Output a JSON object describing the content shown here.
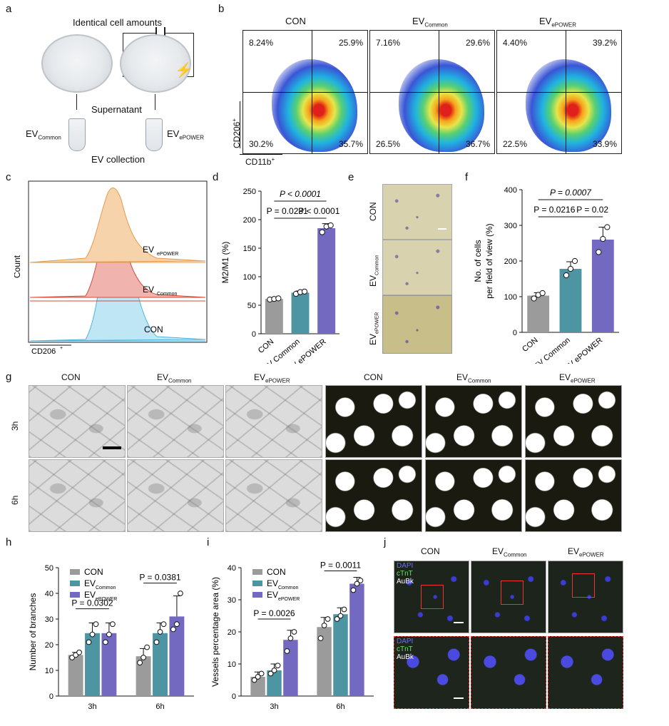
{
  "panels": {
    "a": "a",
    "b": "b",
    "c": "c",
    "d": "d",
    "e": "e",
    "f": "f",
    "g": "g",
    "h": "h",
    "i": "i",
    "j": "j"
  },
  "a": {
    "identical": "Identical cell amounts",
    "supernatant": "Supernatant",
    "ev_common": "EV",
    "ev_common_sub": "Common",
    "ev_epower": "EV",
    "ev_epower_sub": "ePOWER",
    "collection": "EV collection"
  },
  "b": {
    "titles": [
      "CON",
      "EV",
      "EV"
    ],
    "title_subs": [
      "",
      "Common",
      "ePOWER"
    ],
    "quadrants": [
      [
        "8.24%",
        "25.9%",
        "30.2%",
        "35.7%"
      ],
      [
        "7.16%",
        "29.6%",
        "26.5%",
        "36.7%"
      ],
      [
        "4.40%",
        "39.2%",
        "22.5%",
        "33.9%"
      ]
    ],
    "ylabel": "CD206",
    "ylabel_sup": "+",
    "xlabel": "CD11b",
    "xlabel_sup": "+"
  },
  "c": {
    "series": [
      "EV",
      "EV",
      "CON"
    ],
    "series_subs": [
      "ePOWER",
      "Common",
      ""
    ],
    "ylabel": "Count",
    "xlabel": "CD206",
    "xlabel_sup": "+"
  },
  "e": {
    "rows": [
      "CON",
      "EV",
      "EV"
    ],
    "row_subs": [
      "",
      "Common",
      "ePOWER"
    ]
  },
  "g": {
    "cols": [
      "CON",
      "EV",
      "EV",
      "CON",
      "EV",
      "EV"
    ],
    "col_subs": [
      "",
      "Common",
      "ePOWER",
      "",
      "Common",
      "ePOWER"
    ],
    "rows": [
      "3h",
      "6h"
    ]
  },
  "j": {
    "cols": [
      "CON",
      "EV",
      "EV"
    ],
    "col_subs": [
      "",
      "Common",
      "ePOWER"
    ],
    "legend": [
      "DAPI",
      "cTnT",
      "AuBk"
    ]
  },
  "chart_data": [
    {
      "panel": "d",
      "type": "bar",
      "categories": [
        "CON",
        "EV Common",
        "EV ePOWER"
      ],
      "values": [
        61,
        72,
        185
      ],
      "points": [
        [
          60,
          61,
          62
        ],
        [
          70,
          73,
          74
        ],
        [
          178,
          188,
          190
        ]
      ],
      "errors": [
        2,
        3,
        8
      ],
      "ylabel": "M2/M1 (%)",
      "ylim": [
        0,
        250
      ],
      "yticks": [
        "0",
        "50",
        "100",
        "150",
        "200",
        "250"
      ],
      "colors": [
        "#9b9b9b",
        "#4d95a3",
        "#7469c0"
      ],
      "annotations": [
        "P < 0.0001",
        "P = 0.0231",
        "P < 0.0001"
      ]
    },
    {
      "panel": "f",
      "type": "bar",
      "categories": [
        "CON",
        "EV Common",
        "EV ePOWER"
      ],
      "values": [
        103,
        178,
        260
      ],
      "points": [
        [
          95,
          105,
          110
        ],
        [
          160,
          178,
          200
        ],
        [
          225,
          262,
          295
        ]
      ],
      "errors": [
        8,
        20,
        35
      ],
      "ylabel": "No. of cells",
      "ylabel2": "per field of view (%)",
      "ylim": [
        0,
        400
      ],
      "yticks": [
        "0",
        "100",
        "200",
        "300",
        "400"
      ],
      "colors": [
        "#9b9b9b",
        "#4d95a3",
        "#7469c0"
      ],
      "annotations": [
        "P = 0.0007",
        "P = 0.0216",
        "P = 0.02"
      ]
    },
    {
      "panel": "h",
      "type": "bar",
      "categories": [
        "3h",
        "6h"
      ],
      "series": [
        {
          "name": "CON",
          "values": [
            16,
            15.5
          ],
          "points": [
            [
              15,
              16,
              17
            ],
            [
              13,
              15,
              19
            ]
          ],
          "errors": [
            1,
            3
          ]
        },
        {
          "name": "EV Common",
          "values": [
            24.5,
            24.5
          ],
          "points": [
            [
              21,
              24,
              28
            ],
            [
              21,
              25,
              28
            ]
          ],
          "errors": [
            4,
            4
          ]
        },
        {
          "name": "EV ePOWER",
          "values": [
            24.5,
            31
          ],
          "points": [
            [
              21,
              24,
              28
            ],
            [
              26,
              28,
              40
            ]
          ],
          "errors": [
            4,
            8
          ]
        }
      ],
      "ylabel": "Number of branches",
      "ylim": [
        0,
        50
      ],
      "yticks": [
        "0",
        "10",
        "20",
        "30",
        "40",
        "50"
      ],
      "legend": [
        "CON",
        "EV",
        "EV"
      ],
      "legend_subs": [
        "",
        "Common",
        "ePOWER"
      ],
      "colors": [
        "#9b9b9b",
        "#4d95a3",
        "#7469c0"
      ],
      "annotations": [
        "P = 0.0302",
        "P = 0.0381"
      ]
    },
    {
      "panel": "i",
      "type": "bar",
      "categories": [
        "3h",
        "6h"
      ],
      "series": [
        {
          "name": "CON",
          "values": [
            6,
            21.5
          ],
          "points": [
            [
              5,
              6,
              7
            ],
            [
              18,
              22,
              24
            ]
          ],
          "errors": [
            1.5,
            3
          ]
        },
        {
          "name": "EV Common",
          "values": [
            8,
            25.5
          ],
          "points": [
            [
              7,
              8,
              9.5
            ],
            [
              24,
              25,
              27
            ]
          ],
          "errors": [
            2,
            2
          ]
        },
        {
          "name": "EV ePOWER",
          "values": [
            17.5,
            35
          ],
          "points": [
            [
              14,
              18,
              20
            ],
            [
              33,
              35,
              36
            ]
          ],
          "errors": [
            3,
            2
          ]
        }
      ],
      "ylabel": "Vessels percentage area (%)",
      "ylim": [
        0,
        40
      ],
      "yticks": [
        "0",
        "10",
        "20",
        "30",
        "40"
      ],
      "legend": [
        "CON",
        "EV",
        "EV"
      ],
      "legend_subs": [
        "",
        "Common",
        "ePOWER"
      ],
      "colors": [
        "#9b9b9b",
        "#4d95a3",
        "#7469c0"
      ],
      "annotations": [
        "P = 0.0026",
        "P = 0.0011"
      ]
    }
  ]
}
